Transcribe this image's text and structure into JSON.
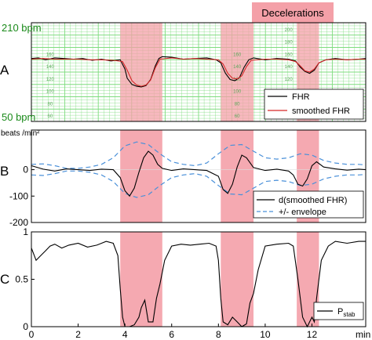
{
  "chart_data": [
    {
      "panel_label": "A",
      "type": "line",
      "legend": [
        "FHR",
        "smoothed FHR"
      ],
      "legend_placement": "bottom-right",
      "y_top_label": "210 bpm",
      "y_bottom_label": "50 bpm",
      "ylim": [
        50,
        210
      ],
      "xlim": [
        0,
        14.3
      ],
      "inner_ticks": [
        "160",
        "140",
        "120",
        "100",
        "80",
        "60"
      ],
      "inner_ticks_segment3": [
        "200",
        "180",
        "160",
        "140",
        "120",
        "100",
        "80",
        "60"
      ],
      "grid": true,
      "series": [
        {
          "name": "FHR",
          "color": "#000000",
          "x": [
            0,
            0.3,
            0.6,
            1.0,
            1.4,
            1.8,
            2.2,
            2.6,
            3.0,
            3.4,
            3.8,
            4.0,
            4.1,
            4.3,
            4.5,
            4.7,
            4.9,
            5.1,
            5.3,
            5.45,
            5.6,
            6.0,
            6.5,
            7.0,
            7.5,
            7.9,
            8.1,
            8.3,
            8.5,
            8.7,
            8.9,
            9.1,
            9.3,
            9.5,
            10.0,
            10.5,
            11.0,
            11.3,
            11.5,
            11.7,
            11.9,
            12.1,
            12.3,
            12.6,
            13.0,
            13.5,
            14.0,
            14.3
          ],
          "values": [
            152,
            153,
            150,
            153,
            152,
            151,
            152,
            149,
            151,
            148,
            150,
            135,
            120,
            110,
            107,
            106,
            108,
            118,
            140,
            152,
            155,
            154,
            151,
            152,
            153,
            150,
            145,
            128,
            118,
            116,
            121,
            138,
            150,
            153,
            150,
            152,
            151,
            148,
            138,
            131,
            128,
            133,
            145,
            150,
            152,
            150,
            151,
            152
          ]
        },
        {
          "name": "smoothed FHR",
          "color": "#d62728",
          "x": [
            0,
            0.5,
            1.0,
            1.5,
            2.0,
            2.5,
            3.0,
            3.5,
            3.9,
            4.1,
            4.3,
            4.5,
            4.7,
            4.9,
            5.1,
            5.3,
            5.5,
            6.0,
            6.5,
            7.0,
            7.5,
            8.0,
            8.2,
            8.4,
            8.6,
            8.8,
            9.0,
            9.2,
            9.4,
            10.0,
            10.5,
            11.0,
            11.3,
            11.5,
            11.7,
            11.9,
            12.1,
            12.3,
            12.6,
            13.0,
            13.5,
            14.0,
            14.3
          ],
          "values": [
            151,
            152,
            151,
            151,
            151,
            150,
            150,
            149,
            147,
            133,
            116,
            109,
            107,
            109,
            117,
            137,
            151,
            153,
            151,
            152,
            151,
            150,
            143,
            128,
            120,
            119,
            124,
            139,
            149,
            151,
            151,
            150,
            147,
            140,
            132,
            130,
            135,
            145,
            150,
            151,
            150,
            151,
            151
          ]
        }
      ]
    },
    {
      "panel_label": "B",
      "type": "line",
      "ylabel": "beats /min²",
      "ylim": [
        -200,
        150
      ],
      "yticks": [
        "0",
        "-100",
        "-200"
      ],
      "xlim": [
        0,
        14.3
      ],
      "grid": false,
      "legend_placement": "bottom-right",
      "series": [
        {
          "name": "d(smoothed FHR)",
          "color": "#000000",
          "x": [
            0,
            0.5,
            1.0,
            1.5,
            2.0,
            2.5,
            3.0,
            3.5,
            3.8,
            4.0,
            4.2,
            4.4,
            4.6,
            4.8,
            5.0,
            5.2,
            5.4,
            5.6,
            6.0,
            6.5,
            7.0,
            7.5,
            8.0,
            8.2,
            8.4,
            8.6,
            8.8,
            9.0,
            9.2,
            9.5,
            10.0,
            10.5,
            11.0,
            11.2,
            11.4,
            11.6,
            11.8,
            12.0,
            12.2,
            12.5,
            13.0,
            13.5,
            14.0,
            14.3
          ],
          "values": [
            15,
            2,
            -5,
            3,
            0,
            -3,
            2,
            0,
            -30,
            -80,
            -100,
            -70,
            -10,
            45,
            70,
            55,
            20,
            5,
            -3,
            3,
            0,
            -3,
            -25,
            -75,
            -90,
            -55,
            10,
            55,
            45,
            8,
            -3,
            2,
            -5,
            -20,
            -55,
            -62,
            -35,
            15,
            30,
            10,
            3,
            -2,
            2,
            0
          ]
        },
        {
          "name": "+/- envelope",
          "color": "#4a90d9",
          "x": [
            0,
            0.5,
            1.0,
            1.5,
            2.0,
            2.5,
            3.0,
            3.5,
            4.0,
            4.5,
            5.0,
            5.5,
            6.0,
            6.5,
            7.0,
            7.5,
            8.0,
            8.5,
            9.0,
            9.5,
            10.0,
            10.5,
            11.0,
            11.5,
            12.0,
            12.5,
            13.0,
            13.5,
            14.0,
            14.3
          ],
          "values": [
            20,
            22,
            15,
            5,
            5,
            10,
            20,
            45,
            90,
            105,
            95,
            60,
            30,
            20,
            15,
            25,
            60,
            92,
            95,
            70,
            45,
            40,
            45,
            60,
            55,
            35,
            25,
            20,
            20,
            18
          ]
        },
        {
          "name": "envelope (negative)",
          "color": "#4a90d9",
          "x": [
            0,
            0.5,
            1.0,
            1.5,
            2.0,
            2.5,
            3.0,
            3.5,
            4.0,
            4.5,
            5.0,
            5.5,
            6.0,
            6.5,
            7.0,
            7.5,
            8.0,
            8.5,
            9.0,
            9.5,
            10.0,
            10.5,
            11.0,
            11.5,
            12.0,
            12.5,
            13.0,
            13.5,
            14.0,
            14.3
          ],
          "values": [
            -20,
            -22,
            -15,
            -5,
            -5,
            -10,
            -20,
            -45,
            -90,
            -105,
            -95,
            -60,
            -30,
            -20,
            -15,
            -25,
            -60,
            -92,
            -95,
            -70,
            -45,
            -40,
            -45,
            -60,
            -55,
            -35,
            -25,
            -20,
            -20,
            -18
          ]
        }
      ]
    },
    {
      "panel_label": "C",
      "type": "line",
      "ylim": [
        0,
        1
      ],
      "yticks": [
        "1",
        "0.5",
        "0"
      ],
      "xlim": [
        0,
        14.3
      ],
      "xticks": [
        "0",
        "2",
        "4",
        "6",
        "8",
        "10",
        "12"
      ],
      "x_unit_label": "min",
      "grid": false,
      "legend_placement": "bottom-right",
      "series": [
        {
          "name": "Pstab",
          "legend_main": "P",
          "legend_sub": "stab",
          "color": "#000000",
          "x": [
            0,
            0.2,
            0.4,
            0.6,
            0.8,
            1.0,
            1.3,
            1.6,
            2.0,
            2.4,
            2.8,
            3.2,
            3.5,
            3.7,
            3.8,
            3.9,
            4.0,
            4.2,
            4.4,
            4.6,
            4.7,
            4.85,
            5.0,
            5.2,
            5.35,
            5.5,
            5.7,
            6.0,
            6.4,
            6.8,
            7.2,
            7.6,
            7.9,
            8.0,
            8.1,
            8.2,
            8.4,
            8.6,
            8.8,
            9.0,
            9.2,
            9.35,
            9.5,
            9.7,
            10.0,
            10.5,
            11.0,
            11.2,
            11.4,
            11.6,
            11.8,
            11.9,
            12.0,
            12.1,
            12.2,
            12.4,
            12.7,
            13.0,
            13.5,
            14.0,
            14.3
          ],
          "values": [
            0.83,
            0.7,
            0.75,
            0.8,
            0.85,
            0.87,
            0.83,
            0.86,
            0.88,
            0.84,
            0.86,
            0.9,
            0.88,
            0.75,
            0.4,
            0.1,
            0.0,
            0.0,
            0.02,
            0.1,
            0.2,
            0.28,
            0.05,
            0.05,
            0.3,
            0.45,
            0.7,
            0.85,
            0.87,
            0.86,
            0.87,
            0.88,
            0.85,
            0.7,
            0.3,
            0.05,
            0.02,
            0.1,
            0.05,
            0.0,
            0.03,
            0.25,
            0.35,
            0.6,
            0.85,
            0.87,
            0.88,
            0.85,
            0.5,
            0.1,
            0.0,
            0.05,
            0.1,
            0.05,
            0.3,
            0.7,
            0.85,
            0.9,
            0.88,
            0.9,
            0.9
          ]
        }
      ]
    }
  ],
  "decelerations": {
    "label": "Decelerations",
    "color": "#f4a0a8",
    "intervals": [
      [
        3.8,
        5.6
      ],
      [
        8.1,
        9.5
      ],
      [
        11.35,
        12.3
      ]
    ]
  }
}
